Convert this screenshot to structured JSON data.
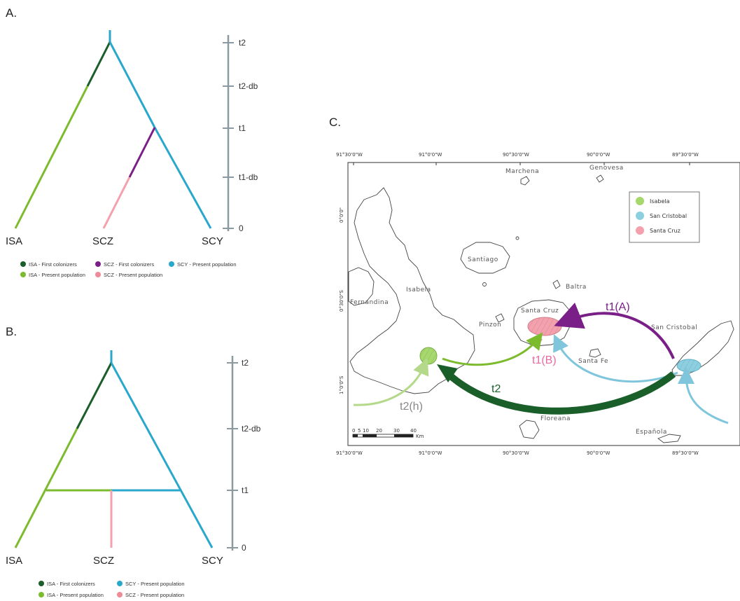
{
  "panels": {
    "a": "A.",
    "b": "B.",
    "c": "C."
  },
  "tree_a": {
    "tips": {
      "left": "ISA",
      "mid": "SCZ",
      "right": "SCY"
    },
    "ticks": [
      "t2",
      "t2-db",
      "t1",
      "t1-db",
      "0"
    ],
    "legend": [
      {
        "label": "ISA - First colonizers",
        "color": "#1a5e2a"
      },
      {
        "label": "ISA - Present population",
        "color": "#7dbb2e"
      },
      {
        "label": "SCZ - First colonizers",
        "color": "#7a1f87"
      },
      {
        "label": "SCZ - Present population",
        "color": "#f08a97"
      },
      {
        "label": "SCY - Present population",
        "color": "#2aa7cc"
      }
    ]
  },
  "tree_b": {
    "tips": {
      "left": "ISA",
      "mid": "SCZ",
      "right": "SCY"
    },
    "ticks": [
      "t2",
      "t2-db",
      "t1",
      "0"
    ],
    "legend": [
      {
        "label": "ISA - First colonizers",
        "color": "#1a5e2a"
      },
      {
        "label": "ISA - Present population",
        "color": "#7dbb2e"
      },
      {
        "label": "SCY - Present population",
        "color": "#2aa7cc"
      },
      {
        "label": "SCZ - Present population",
        "color": "#f08a97"
      }
    ]
  },
  "map": {
    "top_coords": [
      "91°30'0\"W",
      "91°0'0\"W",
      "90°30'0\"W",
      "90°0'0\"W",
      "89°30'0\"W"
    ],
    "bottom_coords": [
      "91°30'0\"W",
      "91°0'0\"W",
      "90°30'0\"W",
      "90°0'0\"W",
      "89°30'0\"W"
    ],
    "left_coords": [
      "0°0'0\"",
      "0°30'0\"S",
      "1°0'0\"S"
    ],
    "islands": {
      "marchena": "Marchena",
      "genovesa": "Genovesa",
      "santiago": "Santiago",
      "isabela": "Isabela",
      "fernandina": "Fernandina",
      "baltra": "Baltra",
      "santa_cruz": "Santa Cruz",
      "pinzon": "Pinzon",
      "san_cristobal": "San Cristobal",
      "santa_fe": "Santa Fe",
      "floreana": "Floreana",
      "espanola": "Española"
    },
    "legend": [
      {
        "label": "Isabela",
        "color": "#a6d86b"
      },
      {
        "label": "San Cristobal",
        "color": "#8ccfe0"
      },
      {
        "label": "Santa Cruz",
        "color": "#f4a0ad"
      }
    ],
    "arrows": {
      "t1a": {
        "label": "t1(A)",
        "color": "#7a1f87"
      },
      "t1b": {
        "label": "t1(B)",
        "color": "#e86aa0"
      },
      "t2": {
        "label": "t2",
        "color": "#1a5e2a"
      },
      "t2h": {
        "label": "t2(h)",
        "color": "#888888"
      }
    },
    "scalebar": {
      "ticks": [
        "0",
        "5",
        "10",
        "20",
        "30",
        "40"
      ],
      "unit": "Km"
    }
  }
}
